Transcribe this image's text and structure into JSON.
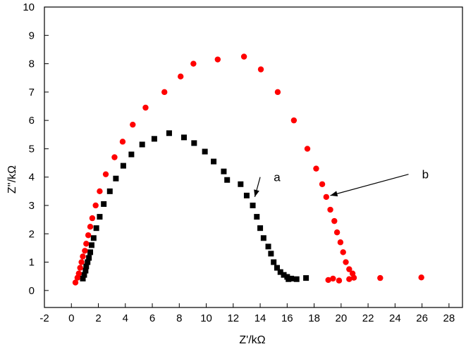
{
  "chart_data": {
    "type": "scatter",
    "xlabel": "Z'/kΩ",
    "ylabel": "Z''/kΩ",
    "xlim": [
      -2,
      29
    ],
    "ylim": [
      -0.6,
      10
    ],
    "xticks": [
      -2,
      0,
      2,
      4,
      6,
      8,
      10,
      12,
      14,
      16,
      18,
      20,
      22,
      24,
      26,
      28
    ],
    "yticks": [
      0,
      1,
      2,
      3,
      4,
      5,
      6,
      7,
      8,
      9,
      10
    ],
    "grid": false,
    "series": [
      {
        "name": "a",
        "marker": "square",
        "color": "#000000",
        "points": [
          [
            0.85,
            0.42
          ],
          [
            0.95,
            0.55
          ],
          [
            1.05,
            0.7
          ],
          [
            1.1,
            0.85
          ],
          [
            1.2,
            1.0
          ],
          [
            1.3,
            1.15
          ],
          [
            1.4,
            1.35
          ],
          [
            1.5,
            1.6
          ],
          [
            1.65,
            1.85
          ],
          [
            1.85,
            2.2
          ],
          [
            2.1,
            2.6
          ],
          [
            2.4,
            3.05
          ],
          [
            2.85,
            3.5
          ],
          [
            3.3,
            3.95
          ],
          [
            3.85,
            4.4
          ],
          [
            4.45,
            4.8
          ],
          [
            5.25,
            5.15
          ],
          [
            6.15,
            5.35
          ],
          [
            7.25,
            5.55
          ],
          [
            8.35,
            5.4
          ],
          [
            9.1,
            5.2
          ],
          [
            9.9,
            4.9
          ],
          [
            10.55,
            4.55
          ],
          [
            11.3,
            4.2
          ],
          [
            11.55,
            3.9
          ],
          [
            12.55,
            3.75
          ],
          [
            13.0,
            3.35
          ],
          [
            13.45,
            3.0
          ],
          [
            13.75,
            2.6
          ],
          [
            14.0,
            2.2
          ],
          [
            14.25,
            1.85
          ],
          [
            14.6,
            1.55
          ],
          [
            14.8,
            1.3
          ],
          [
            15.0,
            1.0
          ],
          [
            15.25,
            0.8
          ],
          [
            15.5,
            0.65
          ],
          [
            15.75,
            0.55
          ],
          [
            16.0,
            0.48
          ],
          [
            16.3,
            0.42
          ],
          [
            16.7,
            0.4
          ],
          [
            17.4,
            0.44
          ],
          [
            16.1,
            0.4
          ]
        ]
      },
      {
        "name": "b",
        "marker": "circle",
        "color": "#ff0000",
        "points": [
          [
            0.3,
            0.28
          ],
          [
            0.45,
            0.45
          ],
          [
            0.55,
            0.6
          ],
          [
            0.65,
            0.8
          ],
          [
            0.75,
            1.0
          ],
          [
            0.85,
            1.2
          ],
          [
            1.0,
            1.4
          ],
          [
            1.1,
            1.65
          ],
          [
            1.25,
            1.95
          ],
          [
            1.4,
            2.25
          ],
          [
            1.55,
            2.55
          ],
          [
            1.8,
            3.0
          ],
          [
            2.1,
            3.5
          ],
          [
            2.55,
            4.1
          ],
          [
            3.2,
            4.7
          ],
          [
            3.8,
            5.25
          ],
          [
            4.55,
            5.85
          ],
          [
            5.5,
            6.45
          ],
          [
            6.9,
            7.0
          ],
          [
            8.1,
            7.55
          ],
          [
            9.05,
            8.0
          ],
          [
            10.85,
            8.15
          ],
          [
            12.8,
            8.25
          ],
          [
            14.05,
            7.8
          ],
          [
            15.3,
            7.0
          ],
          [
            16.5,
            6.0
          ],
          [
            17.5,
            5.0
          ],
          [
            18.15,
            4.3
          ],
          [
            18.6,
            3.75
          ],
          [
            18.9,
            3.3
          ],
          [
            19.2,
            2.85
          ],
          [
            19.5,
            2.45
          ],
          [
            19.7,
            2.05
          ],
          [
            19.95,
            1.7
          ],
          [
            20.15,
            1.35
          ],
          [
            20.35,
            1.0
          ],
          [
            20.6,
            0.75
          ],
          [
            20.85,
            0.6
          ],
          [
            20.95,
            0.45
          ],
          [
            20.6,
            0.4
          ],
          [
            19.85,
            0.35
          ],
          [
            19.4,
            0.42
          ],
          [
            19.05,
            0.37
          ],
          [
            22.9,
            0.44
          ],
          [
            25.95,
            0.46
          ]
        ]
      }
    ],
    "annotations": [
      {
        "text": "a",
        "label_at": [
          15.0,
          4.0
        ],
        "arrow_from": [
          14.0,
          4.0
        ],
        "arrow_to": [
          13.6,
          3.3
        ]
      },
      {
        "text": "b",
        "label_at": [
          26.0,
          4.1
        ],
        "arrow_from": [
          25.0,
          4.1
        ],
        "arrow_to": [
          19.2,
          3.35
        ]
      }
    ]
  }
}
